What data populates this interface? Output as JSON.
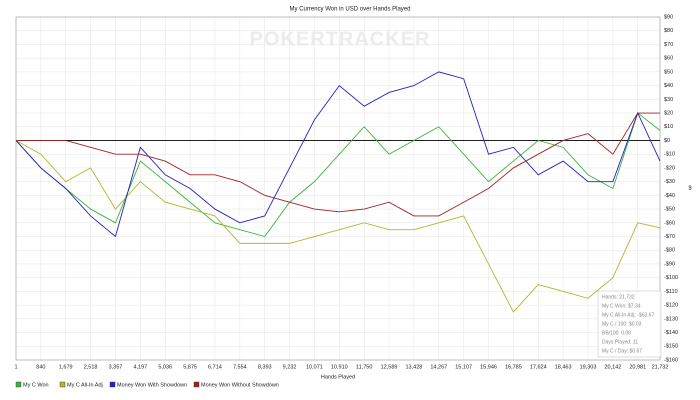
{
  "chart_data": {
    "type": "line",
    "title": "My Currency Won in USD over Hands Played",
    "watermark": "POKERTRACKER",
    "x_label": "Hands Played",
    "y_label": "$",
    "x": [
      1,
      840,
      1679,
      2518,
      3357,
      4197,
      5036,
      5875,
      6714,
      7554,
      8393,
      9232,
      10071,
      10910,
      11750,
      12589,
      13428,
      14267,
      15107,
      15946,
      16785,
      17624,
      18463,
      19303,
      20142,
      20981,
      21732
    ],
    "series": [
      {
        "name": "My C Won",
        "color": "#3cb33c",
        "values": [
          0,
          -20,
          -35,
          -50,
          -60,
          -15,
          -30,
          -45,
          -60,
          -65,
          -70,
          -45,
          -30,
          -10,
          10,
          -10,
          0,
          10,
          -10,
          -30,
          -15,
          0,
          -5,
          -25,
          -35,
          20,
          7.34
        ]
      },
      {
        "name": "My C All-In Adj",
        "color": "#b5b530",
        "values": [
          0,
          -10,
          -30,
          -20,
          -50,
          -30,
          -45,
          -50,
          -55,
          -75,
          -75,
          -75,
          -70,
          -65,
          -60,
          -65,
          -65,
          -60,
          -55,
          -90,
          -125,
          -105,
          -110,
          -115,
          -100,
          -60,
          -63.67
        ]
      },
      {
        "name": "Money Won With Showdown",
        "color": "#2222c0",
        "values": [
          0,
          -20,
          -35,
          -55,
          -70,
          -5,
          -25,
          -35,
          -50,
          -60,
          -55,
          -20,
          15,
          40,
          25,
          35,
          40,
          50,
          45,
          -10,
          -5,
          -25,
          -15,
          -30,
          -30,
          20,
          -15
        ]
      },
      {
        "name": "Money Won Without Showdown",
        "color": "#a02222",
        "values": [
          0,
          0,
          0,
          -5,
          -10,
          -10,
          -15,
          -25,
          -25,
          -30,
          -40,
          -45,
          -50,
          -52,
          -50,
          -45,
          -55,
          -55,
          -45,
          -35,
          -20,
          -10,
          0,
          5,
          -10,
          20,
          20
        ]
      }
    ],
    "xlim": [
      1,
      21732
    ],
    "ylim": [
      -160,
      90
    ],
    "xticks": [
      1,
      840,
      {
        "value": 1679,
        "label": "1,679"
      },
      {
        "value": 2518,
        "label": "2,518"
      },
      {
        "value": 3357,
        "label": "3,357"
      },
      {
        "value": 4197,
        "label": "4,197"
      },
      {
        "value": 5036,
        "label": "5,036"
      },
      {
        "value": 5875,
        "label": "5,875"
      },
      {
        "value": 6714,
        "label": "6,714"
      },
      {
        "value": 7554,
        "label": "7,554"
      },
      {
        "value": 8393,
        "label": "8,393"
      },
      {
        "value": 9232,
        "label": "9,232"
      },
      {
        "value": 10071,
        "label": "10,071"
      },
      {
        "value": 10910,
        "label": "10,910"
      },
      {
        "value": 11750,
        "label": "11,750"
      },
      {
        "value": 12589,
        "label": "12,589"
      },
      {
        "value": 13428,
        "label": "13,428"
      },
      {
        "value": 14267,
        "label": "14,267"
      },
      {
        "value": 15107,
        "label": "15,107"
      },
      {
        "value": 15946,
        "label": "15,946"
      },
      {
        "value": 16785,
        "label": "16,785"
      },
      {
        "value": 17624,
        "label": "17,624"
      },
      {
        "value": 18463,
        "label": "18,463"
      },
      {
        "value": 19303,
        "label": "19,303"
      },
      {
        "value": 20142,
        "label": "20,142"
      },
      {
        "value": 20981,
        "label": "20,981"
      },
      {
        "value": 21732,
        "label": "21,732"
      }
    ],
    "yticks": [
      {
        "value": 90,
        "label": "$90"
      },
      {
        "value": 80,
        "label": "$80"
      },
      {
        "value": 70,
        "label": "$70"
      },
      {
        "value": 60,
        "label": "$60"
      },
      {
        "value": 50,
        "label": "$50"
      },
      {
        "value": 40,
        "label": "$40"
      },
      {
        "value": 30,
        "label": "$30"
      },
      {
        "value": 20,
        "label": "$20"
      },
      {
        "value": 10,
        "label": "$10"
      },
      {
        "value": 0,
        "label": "$0"
      },
      {
        "value": -10,
        "label": "-$10"
      },
      {
        "value": -20,
        "label": "-$20"
      },
      {
        "value": -30,
        "label": "-$30"
      },
      {
        "value": -40,
        "label": "-$40"
      },
      {
        "value": -50,
        "label": "-$50"
      },
      {
        "value": -60,
        "label": "-$60"
      },
      {
        "value": -70,
        "label": "-$70"
      },
      {
        "value": -80,
        "label": "-$80"
      },
      {
        "value": -90,
        "label": "-$90"
      },
      {
        "value": -100,
        "label": "-$100"
      },
      {
        "value": -110,
        "label": "-$110"
      },
      {
        "value": -120,
        "label": "-$120"
      },
      {
        "value": -130,
        "label": "-$130"
      },
      {
        "value": -140,
        "label": "-$140"
      },
      {
        "value": -150,
        "label": "-$150"
      },
      {
        "value": -160,
        "label": "-$160"
      }
    ],
    "grid": true,
    "zero_line": 0,
    "tooltip": [
      "Hands: 21,732",
      "My C Won: $7.34",
      "My C All-In Adj: -$63.67",
      "My C / 100: $0.03",
      "BB/100: 0.08",
      "Days Played: 11",
      "My C / Day: $0.67"
    ]
  }
}
